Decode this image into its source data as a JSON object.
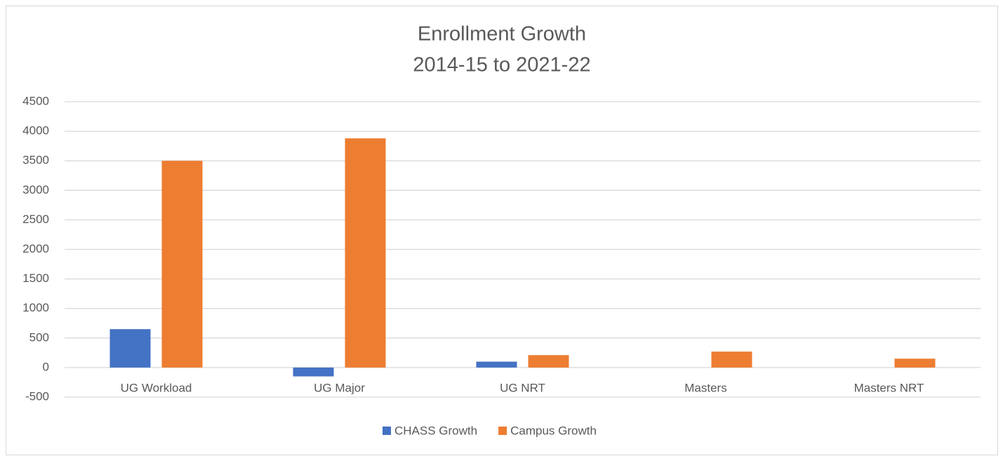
{
  "chart_data": {
    "type": "bar",
    "title": "Enrollment Growth",
    "subtitle": "2014-15 to 2021-22",
    "categories": [
      "UG Workload",
      "UG Major",
      "UG NRT",
      "Masters",
      "Masters NRT"
    ],
    "series": [
      {
        "name": "CHASS Growth",
        "color": "#4472c4",
        "values": [
          650,
          -150,
          100,
          0,
          0
        ]
      },
      {
        "name": "Campus Growth",
        "color": "#ed7d31",
        "values": [
          3500,
          3880,
          210,
          270,
          150
        ]
      }
    ],
    "ylim": [
      -500,
      4500
    ],
    "yticks": [
      -500,
      0,
      500,
      1000,
      1500,
      2000,
      2500,
      3000,
      3500,
      4000,
      4500
    ],
    "grid": true,
    "legend": "bottom"
  }
}
